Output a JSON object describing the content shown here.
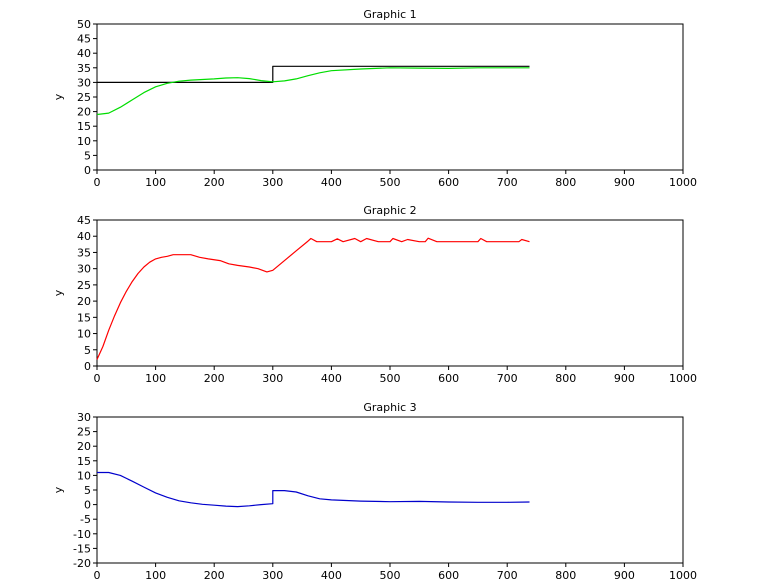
{
  "chart_data": [
    {
      "type": "line",
      "title": "Graphic 1",
      "xlabel": "",
      "ylabel": "y",
      "xlim": [
        0,
        1000
      ],
      "ylim": [
        0,
        50
      ],
      "xticks": [
        0,
        100,
        200,
        300,
        400,
        500,
        600,
        700,
        800,
        900,
        1000
      ],
      "yticks": [
        0,
        5,
        10,
        15,
        20,
        25,
        30,
        35,
        40,
        45,
        50
      ],
      "grid": false,
      "series": [
        {
          "color": "#000000",
          "step": true,
          "x": [
            0,
            300,
            300,
            738
          ],
          "y": [
            30,
            30,
            35.5,
            35.5
          ]
        },
        {
          "color": "#00dd00",
          "x": [
            0,
            20,
            40,
            60,
            80,
            100,
            120,
            140,
            160,
            180,
            200,
            220,
            240,
            260,
            280,
            300,
            320,
            340,
            360,
            380,
            400,
            450,
            500,
            550,
            600,
            650,
            700,
            738
          ],
          "y": [
            19,
            19.5,
            21.5,
            24,
            26.5,
            28.5,
            29.7,
            30.4,
            30.8,
            31,
            31.2,
            31.5,
            31.6,
            31.3,
            30.6,
            30.2,
            30.5,
            31.2,
            32.3,
            33.3,
            34,
            34.6,
            35,
            34.9,
            34.8,
            35,
            35,
            35
          ]
        }
      ]
    },
    {
      "type": "line",
      "title": "Graphic 2",
      "xlabel": "",
      "ylabel": "y",
      "xlim": [
        0,
        1000
      ],
      "ylim": [
        0,
        45
      ],
      "xticks": [
        0,
        100,
        200,
        300,
        400,
        500,
        600,
        700,
        800,
        900,
        1000
      ],
      "yticks": [
        0,
        5,
        10,
        15,
        20,
        25,
        30,
        35,
        40,
        45
      ],
      "grid": false,
      "series": [
        {
          "color": "#ff0000",
          "x": [
            0,
            10,
            20,
            30,
            40,
            50,
            60,
            70,
            80,
            90,
            100,
            110,
            120,
            130,
            140,
            160,
            175,
            190,
            210,
            225,
            240,
            260,
            275,
            290,
            300,
            320,
            340,
            360,
            365,
            375,
            400,
            410,
            420,
            440,
            450,
            460,
            480,
            500,
            505,
            520,
            530,
            550,
            560,
            565,
            580,
            590,
            610,
            650,
            655,
            665,
            700,
            720,
            725,
            738
          ],
          "y": [
            2,
            6,
            11,
            15.5,
            19.5,
            23,
            26,
            28.5,
            30.5,
            32,
            33,
            33.5,
            33.8,
            34.3,
            34.3,
            34.3,
            33.5,
            33,
            32.5,
            31.5,
            31,
            30.5,
            30,
            29,
            29.5,
            32.5,
            35.5,
            38.5,
            39.3,
            38.3,
            38.3,
            39.2,
            38.3,
            39.3,
            38.3,
            39.3,
            38.3,
            38.3,
            39.3,
            38.3,
            39,
            38.3,
            38.3,
            39.4,
            38.3,
            38.3,
            38.3,
            38.3,
            39.3,
            38.3,
            38.3,
            38.3,
            39,
            38.3
          ]
        }
      ]
    },
    {
      "type": "line",
      "title": "Graphic 3",
      "xlabel": "",
      "ylabel": "y",
      "xlim": [
        0,
        1000
      ],
      "ylim": [
        -20,
        30
      ],
      "xticks": [
        0,
        100,
        200,
        300,
        400,
        500,
        600,
        700,
        800,
        900,
        1000
      ],
      "yticks": [
        -20,
        -15,
        -10,
        -5,
        0,
        5,
        10,
        15,
        20,
        25,
        30
      ],
      "grid": false,
      "series": [
        {
          "color": "#0000cc",
          "x": [
            0,
            20,
            40,
            60,
            80,
            100,
            120,
            140,
            160,
            180,
            200,
            220,
            240,
            260,
            280,
            300,
            300,
            320,
            340,
            360,
            380,
            400,
            450,
            500,
            550,
            600,
            650,
            700,
            738
          ],
          "y": [
            11,
            11,
            10,
            8,
            6,
            4,
            2.5,
            1.3,
            0.6,
            0.1,
            -0.2,
            -0.5,
            -0.7,
            -0.4,
            0,
            0.3,
            4.8,
            4.8,
            4.3,
            3,
            2,
            1.6,
            1.2,
            1,
            1.1,
            0.9,
            0.8,
            0.8,
            0.9
          ]
        }
      ]
    }
  ]
}
